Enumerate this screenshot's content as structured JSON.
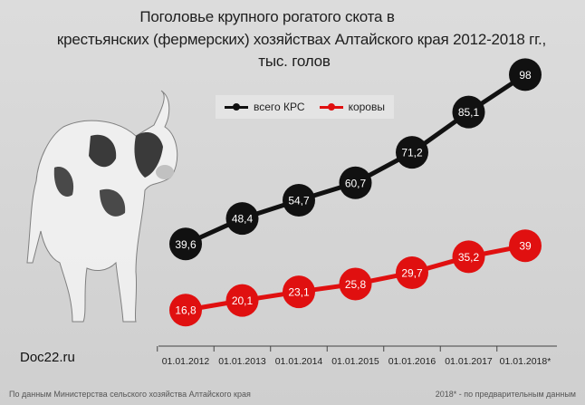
{
  "title_lines": [
    "Поголовье крупного рогатого скота в",
    "крестьянских (фермерских) хозяйствах Алтайского края 2012-2018 гг.,",
    "тыс. голов"
  ],
  "watermark": "Doc22.ru",
  "source_note": "По данным Министерства сельского хозяйства Алтайского края",
  "prelim_note": "2018* - по предварительным данным",
  "colors": {
    "total": "#111111",
    "cows": "#e01010",
    "background": "#d2d2d2"
  },
  "chart_data": {
    "type": "line",
    "categories": [
      "01.01.2012",
      "01.01.2013",
      "01.01.2014",
      "01.01.2015",
      "01.01.2016",
      "01.01.2017",
      "01.01.2018*"
    ],
    "series": [
      {
        "name": "всего КРС",
        "values": [
          39.6,
          48.4,
          54.7,
          60.7,
          71.2,
          85.1,
          98
        ],
        "labels": [
          "39,6",
          "48,4",
          "54,7",
          "60,7",
          "71,2",
          "85,1",
          "98"
        ]
      },
      {
        "name": "коровы",
        "values": [
          16.8,
          20.1,
          23.1,
          25.8,
          29.7,
          35.2,
          39
        ],
        "labels": [
          "16,8",
          "20,1",
          "23,1",
          "25,8",
          "29,7",
          "35,2",
          "39"
        ]
      }
    ],
    "legend_position": "top-center",
    "grid": false
  }
}
